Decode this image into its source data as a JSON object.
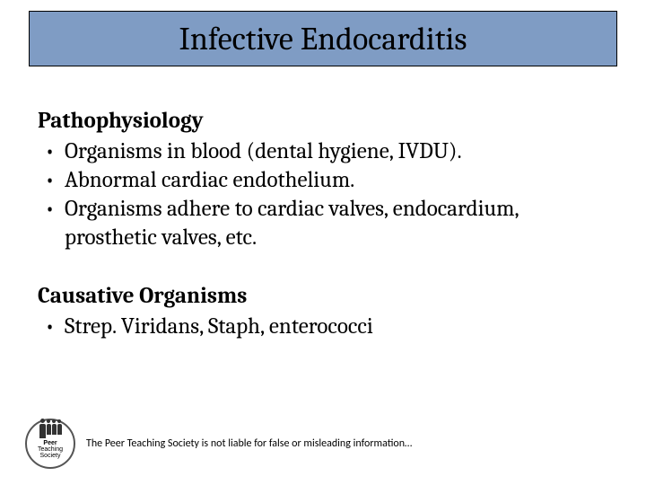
{
  "slide": {
    "title": "Infective Endocarditis",
    "title_bar_color": "#7f9cc4",
    "title_border_color": "#000000",
    "title_font_size": 36,
    "sections": [
      {
        "heading": "Pathophysiology",
        "bullets": [
          "Organisms in blood (dental hygiene, IVDU).",
          "Abnormal cardiac endothelium.",
          "Organisms adhere to cardiac valves, endocardium, prosthetic valves, etc."
        ]
      },
      {
        "heading": "Causative Organisms",
        "bullets": [
          "Strep. Viridans, Staph, enterococci"
        ]
      }
    ],
    "body_font_size": 25,
    "footer": {
      "logo_line1": "Peer",
      "logo_line2": "Teaching",
      "logo_line3": "Society",
      "disclaimer": "The Peer Teaching Society is not liable for false or misleading information…",
      "disclaimer_font_size": 12
    },
    "background_color": "#ffffff"
  }
}
